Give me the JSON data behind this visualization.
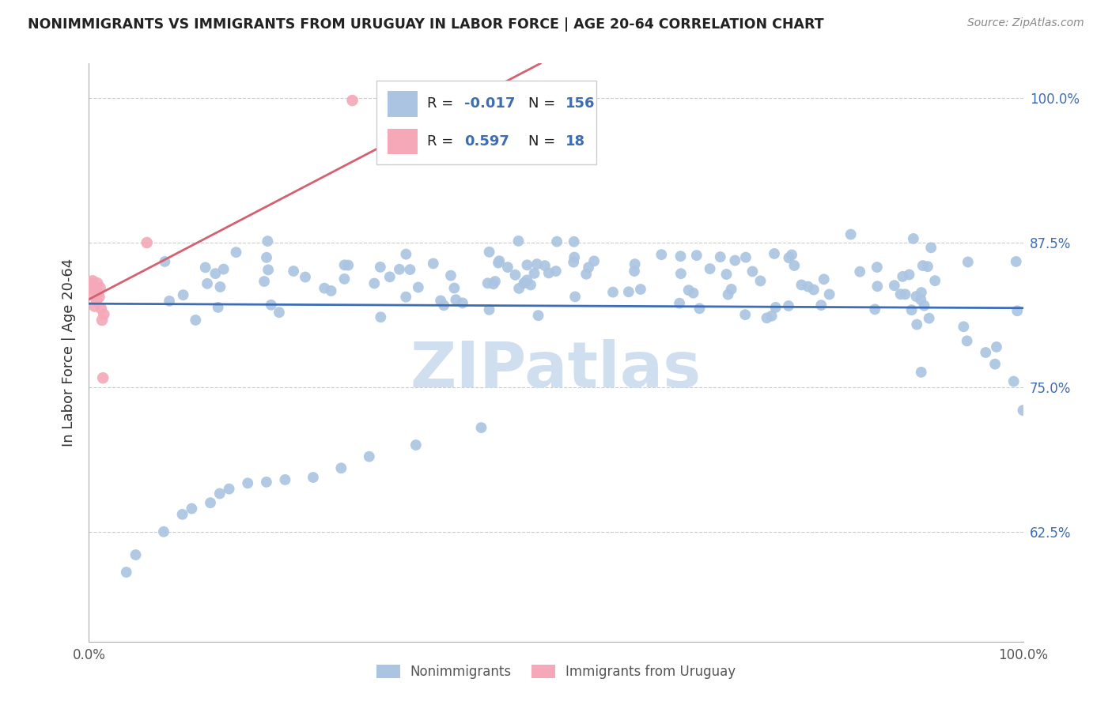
{
  "title": "NONIMMIGRANTS VS IMMIGRANTS FROM URUGUAY IN LABOR FORCE | AGE 20-64 CORRELATION CHART",
  "source": "Source: ZipAtlas.com",
  "ylabel": "In Labor Force | Age 20-64",
  "xlim": [
    0.0,
    1.0
  ],
  "ylim": [
    0.53,
    1.03
  ],
  "yticks": [
    0.625,
    0.75,
    0.875,
    1.0
  ],
  "ytick_labels": [
    "62.5%",
    "75.0%",
    "87.5%",
    "100.0%"
  ],
  "xticks": [
    0.0,
    1.0
  ],
  "xtick_labels": [
    "0.0%",
    "100.0%"
  ],
  "blue_R": -0.017,
  "blue_N": 156,
  "pink_R": 0.597,
  "pink_N": 18,
  "blue_color": "#aac4e2",
  "pink_color": "#f4a8b8",
  "blue_line_color": "#3d6db5",
  "pink_line_color": "#d46070",
  "watermark_color": "#d0dff0",
  "legend_label_blue": "Nonimmigrants",
  "legend_label_pink": "Immigrants from Uruguay",
  "blue_trend_intercept": 0.838,
  "blue_trend_slope": -0.004,
  "pink_trend_intercept": 0.795,
  "pink_trend_slope": 0.62
}
